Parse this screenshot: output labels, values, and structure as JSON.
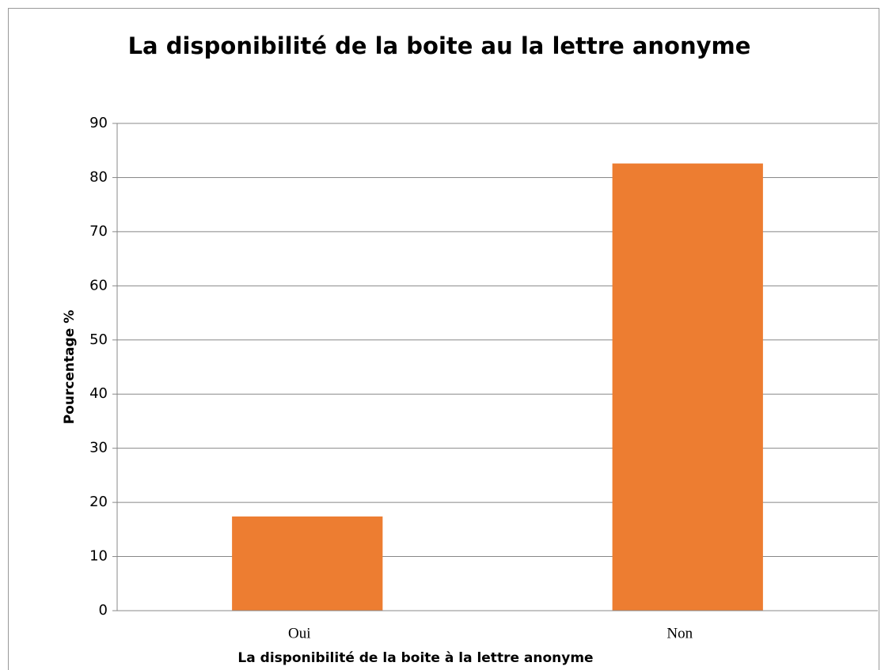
{
  "chart_data": {
    "type": "bar",
    "title": "La disponibilité de la boite au la lettre anonyme",
    "x_label": "La disponibilité de la boite à la lettre anonyme",
    "y_label": "Pourcentage %",
    "categories": [
      "Oui",
      "Non"
    ],
    "values": [
      17.4,
      82.6
    ],
    "color": "#ed7d31",
    "ylim": [
      0,
      90
    ],
    "yticks": [
      0,
      10,
      20,
      30,
      40,
      50,
      60,
      70,
      80,
      90
    ],
    "grid": true
  }
}
